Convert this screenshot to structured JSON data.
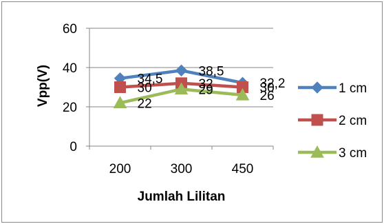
{
  "chart_data": {
    "type": "line",
    "title": "",
    "xlabel": "Jumlah Lilitan",
    "ylabel": "Vpp(V)",
    "categories": [
      "200",
      "300",
      "450"
    ],
    "ylim": [
      0,
      60
    ],
    "yticks": [
      0,
      20,
      40,
      60
    ],
    "grid": "horizontal",
    "legend_position": "right",
    "series": [
      {
        "name": "1 cm",
        "values": [
          34.5,
          38.5,
          32.2
        ],
        "labels": [
          "34,5",
          "38,5",
          "32,2"
        ],
        "color": "#4f81bd",
        "marker": "diamond"
      },
      {
        "name": "2 cm",
        "values": [
          30,
          32,
          30
        ],
        "labels": [
          "30",
          "32",
          "30"
        ],
        "color": "#c0504d",
        "marker": "square"
      },
      {
        "name": "3 cm",
        "values": [
          22,
          29,
          26
        ],
        "labels": [
          "22",
          "29",
          "26"
        ],
        "color": "#9bbb59",
        "marker": "triangle"
      }
    ]
  }
}
